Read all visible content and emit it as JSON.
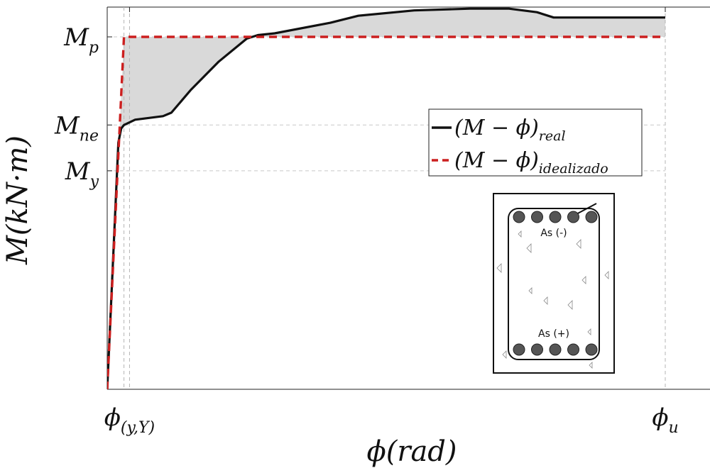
{
  "chart_data": {
    "type": "line",
    "title": "",
    "xlabel": "ϕ(rad)",
    "ylabel": "M(kN·m)",
    "xlim": [
      0,
      1.1
    ],
    "ylim": [
      0,
      1.1
    ],
    "grid": false,
    "legend_position": "center-right",
    "xticks": [
      {
        "value": 0.04,
        "label": "ϕ",
        "sub": "(y,Y)"
      },
      {
        "value": 1.0,
        "label": "ϕ",
        "sub": "u"
      }
    ],
    "yticks": [
      {
        "value": 1.0,
        "label": "M",
        "sub": "p"
      },
      {
        "value": 0.75,
        "label": "M",
        "sub": "ne"
      },
      {
        "value": 0.62,
        "label": "M",
        "sub": "y"
      }
    ],
    "reference_lines": {
      "x": [
        0.03,
        0.04,
        1.0
      ],
      "y": [
        1.0,
        0.75,
        0.62
      ]
    },
    "series": [
      {
        "name": "(M − ϕ)real",
        "label_main": "(M − ϕ)",
        "label_sub": "real",
        "color": "#111111",
        "dash": "solid",
        "x": [
          0.0,
          0.02,
          0.025,
          0.03,
          0.05,
          0.1,
          0.115,
          0.15,
          0.2,
          0.25,
          0.27,
          0.3,
          0.4,
          0.45,
          0.55,
          0.65,
          0.72,
          0.77,
          0.8,
          0.85,
          0.95,
          1.0
        ],
        "y": [
          0.0,
          0.7,
          0.74,
          0.75,
          0.765,
          0.775,
          0.785,
          0.85,
          0.93,
          0.995,
          1.005,
          1.01,
          1.04,
          1.06,
          1.075,
          1.08,
          1.08,
          1.07,
          1.055,
          1.055,
          1.055,
          1.055
        ]
      },
      {
        "name": "(M − ϕ)idealizado",
        "label_main": "(M − ϕ)",
        "label_sub": "idealizado",
        "color": "#cc1f1f",
        "dash": "dashed",
        "x": [
          0.0,
          0.03,
          1.0
        ],
        "y": [
          0.0,
          1.0,
          1.0
        ]
      }
    ],
    "fill_between": {
      "color": "#d9d9d9"
    },
    "inset": {
      "description_labels": {
        "top": "As (-)",
        "bottom": "As (+)"
      },
      "bars_per_row": 5
    }
  }
}
